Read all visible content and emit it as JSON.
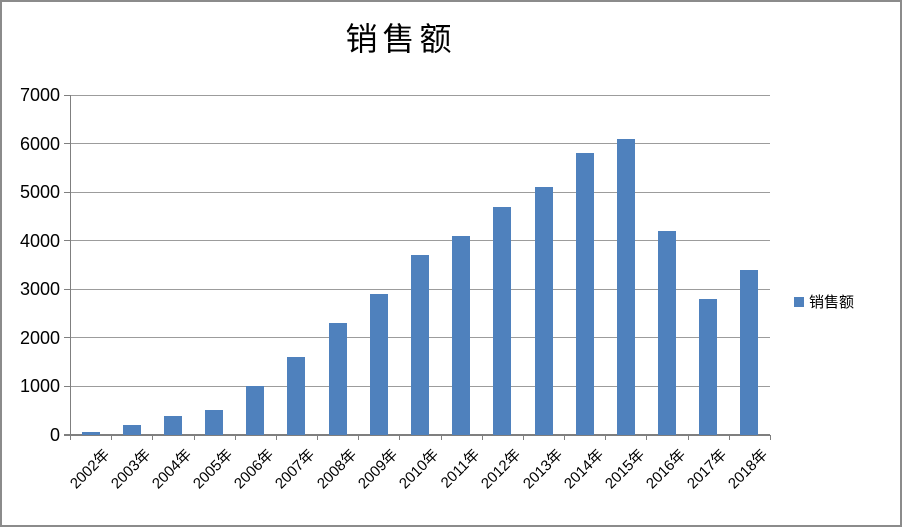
{
  "chart_data": {
    "type": "bar",
    "title": "销售额",
    "categories": [
      "2002年",
      "2003年",
      "2004年",
      "2005年",
      "2006年",
      "2007年",
      "2008年",
      "2009年",
      "2010年",
      "2011年",
      "2012年",
      "2013年",
      "2014年",
      "2015年",
      "2016年",
      "2017年",
      "2018年"
    ],
    "series": [
      {
        "name": "销售额",
        "values": [
          60,
          200,
          400,
          520,
          1000,
          1600,
          2300,
          2900,
          3700,
          4100,
          4700,
          5100,
          5800,
          6100,
          4200,
          2800,
          3400
        ]
      }
    ],
    "xlabel": "",
    "ylabel": "",
    "ylim": [
      0,
      7000
    ],
    "y_ticks": [
      0,
      1000,
      2000,
      3000,
      4000,
      5000,
      6000,
      7000
    ],
    "grid": "horizontal",
    "legend_position": "right",
    "colors": {
      "bar": "#4F81BD",
      "gridline": "#9c9c9c",
      "axis": "#7f7f7f",
      "border": "#8b8b8b",
      "text": "#000000",
      "background": "#ffffff"
    }
  }
}
